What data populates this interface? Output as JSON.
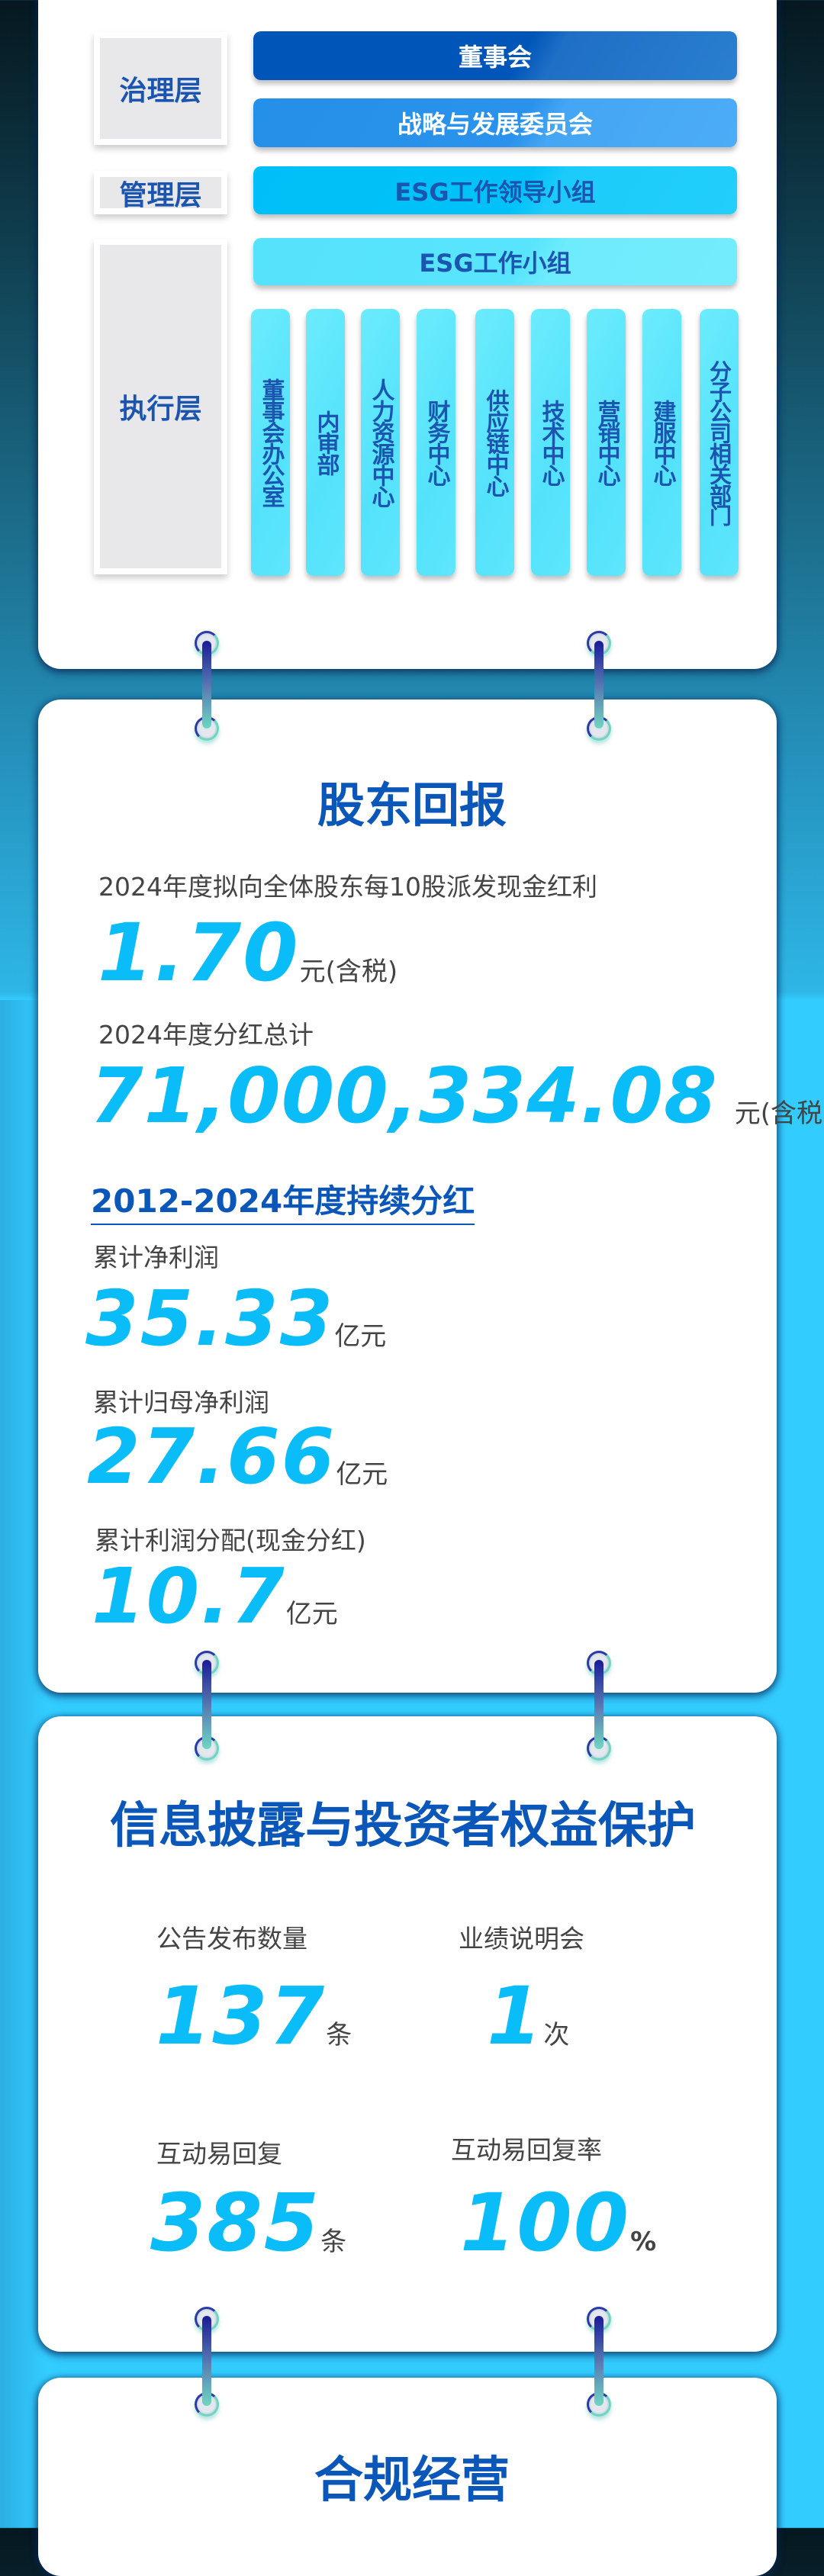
{
  "structure": {
    "layers": [
      "治理层",
      "管理层",
      "执行层"
    ],
    "board": "董事会",
    "strategy_committee": "战略与发展委员会",
    "esg_leadership": "ESG工作领导小组",
    "esg_group": "ESG工作小组",
    "departments": [
      "董事会办公室",
      "内审部",
      "人力资源中心",
      "财务中心",
      "供应链中心",
      "技术中心",
      "营销中心",
      "建服中心",
      "分子公司相关部门"
    ]
  },
  "shareholder": {
    "title": "股东回报",
    "dividend_label": "2024年度拟向全体股东每10股派发现金红利",
    "dividend_value": "1.70",
    "dividend_unit": "元(含税)",
    "total_label": "2024年度分红总计",
    "total_value": "71,000,334.08",
    "total_unit": "元(含税)",
    "period_title": "2012-2024年度持续分红",
    "stats": [
      {
        "label": "累计净利润",
        "value": "35.33",
        "unit": "亿元"
      },
      {
        "label": "累计归母净利润",
        "value": "27.66",
        "unit": "亿元"
      },
      {
        "label": "累计利润分配(现金分红)",
        "value": "10.7",
        "unit": "亿元"
      }
    ]
  },
  "disclosure": {
    "title": "信息披露与投资者权益保护",
    "stats": [
      {
        "label": "公告发布数量",
        "value": "137",
        "unit": "条"
      },
      {
        "label": "业绩说明会",
        "value": "1",
        "unit": "次"
      },
      {
        "label": "互动易回复",
        "value": "385",
        "unit": "条"
      },
      {
        "label": "互动易回复率",
        "value": "100",
        "unit": "%"
      }
    ]
  },
  "compliance": {
    "title": "合规经营"
  },
  "colors": {
    "title": "#0b57b9",
    "number": "#0abdf8",
    "board": "#0055b8",
    "strategy": "#2a90e8",
    "esg_leadership": "#00c0f8",
    "esg_group": "#58e4fc",
    "background_bottom": "#33ccff"
  }
}
